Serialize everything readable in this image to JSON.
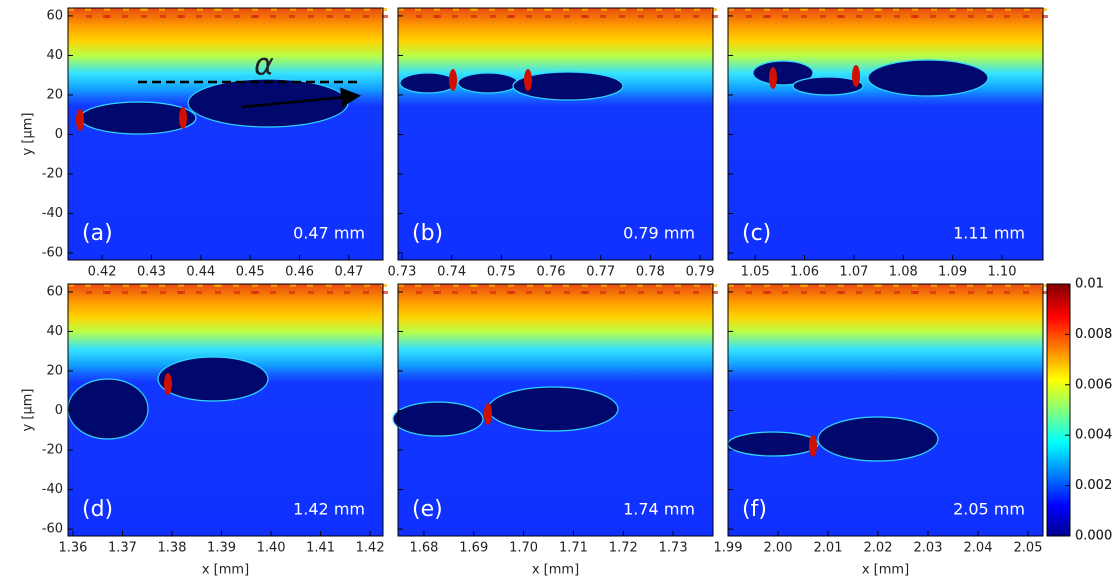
{
  "chart_data": [
    {
      "type": "heatmap",
      "panel": "(a)",
      "annotation": "0.47 mm",
      "marker": "α",
      "y_label": "y [μm]",
      "xlim": [
        0.4131,
        0.4769
      ],
      "ylim": [
        -63.5,
        64
      ],
      "xticks": [
        0.42,
        0.43,
        0.44,
        0.45,
        0.46,
        0.47
      ],
      "yticks": [
        -60,
        -40,
        -20,
        0,
        20,
        40,
        60
      ]
    },
    {
      "type": "heatmap",
      "panel": "(b)",
      "annotation": "0.79 mm",
      "xlim": [
        0.7292,
        0.7926
      ],
      "ylim": [
        -63.5,
        64
      ],
      "xticks": [
        0.73,
        0.74,
        0.75,
        0.76,
        0.77,
        0.78,
        0.79
      ],
      "yticks": [
        -60,
        -40,
        -20,
        0,
        20,
        40,
        60
      ]
    },
    {
      "type": "heatmap",
      "panel": "(c)",
      "annotation": "1.11 mm",
      "xlim": [
        1.0445,
        1.1083
      ],
      "ylim": [
        -63.5,
        64
      ],
      "xticks": [
        1.05,
        1.06,
        1.07,
        1.08,
        1.09,
        {
          "value": 1.1,
          "label": "1.10"
        }
      ],
      "yticks": [
        -60,
        -40,
        -20,
        0,
        20,
        40,
        60
      ]
    },
    {
      "type": "heatmap",
      "panel": "(d)",
      "annotation": "1.42 mm",
      "y_label": "y [μm]",
      "x_label": "x [mm]",
      "xlim": [
        1.359,
        1.4226
      ],
      "ylim": [
        -63.5,
        64
      ],
      "xticks": [
        1.36,
        1.37,
        1.38,
        1.39,
        {
          "value": 1.4,
          "label": "1.40"
        },
        1.41,
        1.42
      ],
      "yticks": [
        -60,
        -40,
        -20,
        0,
        20,
        40,
        60
      ]
    },
    {
      "type": "heatmap",
      "panel": "(e)",
      "annotation": "1.74 mm",
      "x_label": "x [mm]",
      "xlim": [
        1.6748,
        1.738
      ],
      "ylim": [
        -63.5,
        64
      ],
      "xticks": [
        1.68,
        1.69,
        {
          "value": 1.7,
          "label": "1.70"
        },
        1.71,
        1.72,
        1.73
      ],
      "yticks": [
        -60,
        -40,
        -20,
        0,
        20,
        40,
        60
      ]
    },
    {
      "type": "heatmap",
      "panel": "(f)",
      "annotation": "2.05 mm",
      "x_label": "x [mm]",
      "xlim": [
        1.99,
        2.053
      ],
      "ylim": [
        -63.5,
        64
      ],
      "xticks": [
        1.99,
        {
          "value": 2,
          "label": "2.00"
        },
        2.01,
        2.02,
        2.03,
        2.04,
        2.05
      ],
      "yticks": [
        -60,
        -40,
        -20,
        0,
        20,
        40,
        60
      ]
    },
    {
      "type": "colorbar",
      "ylim": [
        0,
        0.01
      ],
      "yticks": [
        {
          "value": 0,
          "label": "0.000"
        },
        0.002,
        0.004,
        0.006,
        0.008,
        0.01
      ]
    },
    {
      "type": "colorbar",
      "ylim": [
        0,
        0.01
      ],
      "yticks": [
        {
          "value": 0,
          "label": "0.000"
        },
        0.002,
        0.004,
        0.006,
        0.008,
        0.01
      ]
    }
  ]
}
